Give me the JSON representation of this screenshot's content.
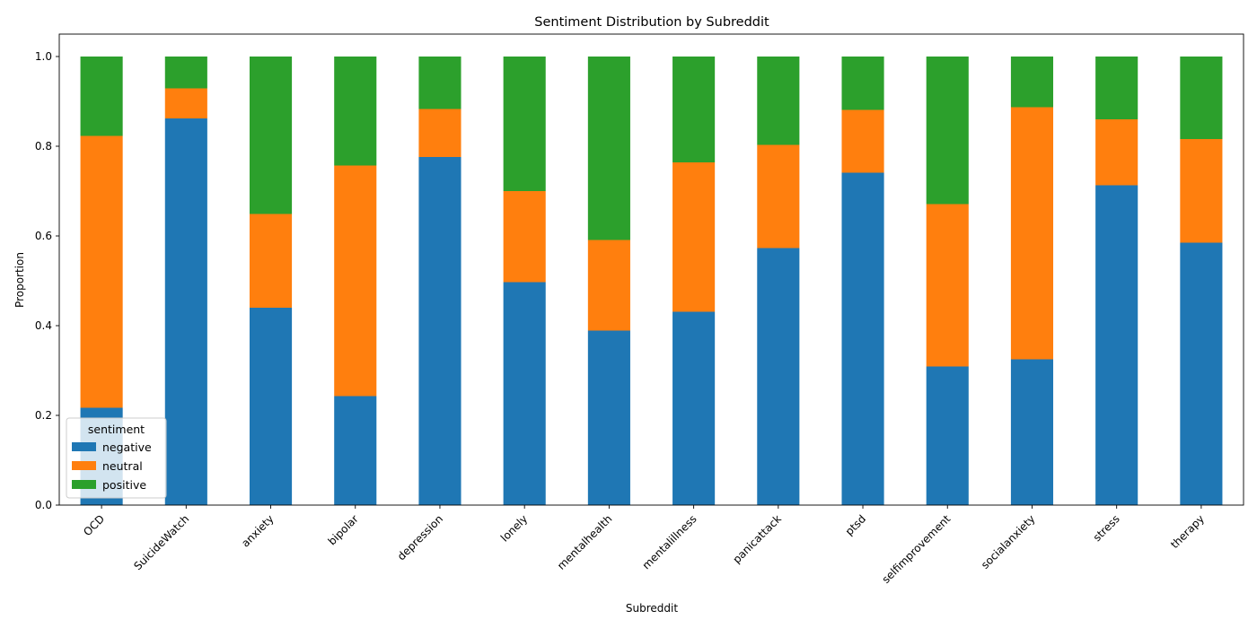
{
  "chart_data": {
    "type": "bar",
    "stacked": true,
    "title": "Sentiment Distribution by Subreddit",
    "xlabel": "Subreddit",
    "ylabel": "Proportion",
    "ylim": [
      0,
      1.05
    ],
    "yticks": [
      "0.0",
      "0.2",
      "0.4",
      "0.6",
      "0.8",
      "1.0"
    ],
    "grid": false,
    "legend": {
      "title": "sentiment",
      "placement": "lower-left"
    },
    "categories": [
      "OCD",
      "SuicideWatch",
      "anxiety",
      "bipolar",
      "depression",
      "lonely",
      "mentalhealth",
      "mentalillness",
      "panicattack",
      "ptsd",
      "selfimprovement",
      "socialanxiety",
      "stress",
      "therapy"
    ],
    "series": [
      {
        "name": "negative",
        "color": "#1f77b4",
        "values": [
          0.217,
          0.862,
          0.44,
          0.243,
          0.776,
          0.497,
          0.389,
          0.431,
          0.573,
          0.741,
          0.309,
          0.325,
          0.713,
          0.585
        ]
      },
      {
        "name": "neutral",
        "color": "#ff7f0e",
        "values": [
          0.606,
          0.067,
          0.209,
          0.514,
          0.107,
          0.203,
          0.202,
          0.333,
          0.23,
          0.14,
          0.362,
          0.562,
          0.147,
          0.231
        ]
      },
      {
        "name": "positive",
        "color": "#2ca02c",
        "values": [
          0.177,
          0.071,
          0.351,
          0.243,
          0.117,
          0.3,
          0.409,
          0.236,
          0.197,
          0.119,
          0.329,
          0.113,
          0.14,
          0.184
        ]
      }
    ]
  }
}
